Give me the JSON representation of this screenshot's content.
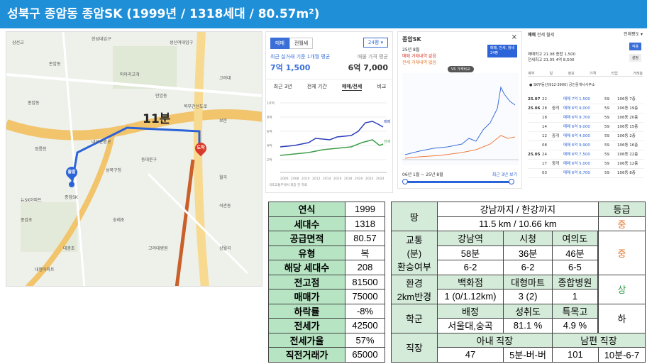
{
  "title": "성북구 종암동 종암SK (1999년 / 1318세대 / 80.57m²)",
  "map": {
    "travel_time": "11분",
    "labels": [
      "삼선교",
      "한성대입구",
      "성신여대입구",
      "돈암동",
      "미아리고개",
      "종암SK",
      "고려대",
      "종암동",
      "안암동",
      "보문",
      "동대문구",
      "성북구청",
      "정릉천",
      "내부순환로",
      "북부간선도로",
      "종암초",
      "숭례초",
      "월곡",
      "석관동",
      "대광초",
      "고려대병원",
      "상월곡",
      "뉴SK아파트",
      "대명아파트"
    ],
    "pin_start": "출발",
    "pin_end": "도착"
  },
  "price_panel": {
    "tabs": [
      "매매",
      "전월세"
    ],
    "area_select": "24평",
    "left_label": "최근 실거래 기준 1개월 평균",
    "left_value": "7억 1,500",
    "right_label": "매물 가격 평균",
    "right_value": "6억 7,000",
    "subtabs": [
      "최근 3년",
      "전체 기간",
      "매매/전세",
      "비교"
    ],
    "y_ticks": [
      "10억",
      "8억",
      "6억",
      "4억",
      "2억"
    ],
    "x_ticks": [
      "2006",
      "2008",
      "2010",
      "2012",
      "2014",
      "2016",
      "2018",
      "2020",
      "2022",
      "2024"
    ],
    "legend_sale": "매매",
    "legend_jeonse": "전세",
    "footnote": "국토교통부에서 최종 전 자료"
  },
  "trade_chart": {
    "title": "종암SK",
    "line1": "25년 8월",
    "line2": "매매 거래내역 없음",
    "line3": "전세 거래내역 없음",
    "badge": "VS 가격비교",
    "filter": "매매, 전세, 월세",
    "filter2": "24평",
    "range": "06년 1월 ~ 25년 8월",
    "range_btn": "최근 3년 보기"
  },
  "deals_panel": {
    "tabs": [
      "매매",
      "전세",
      "월세"
    ],
    "filter": "전체평도",
    "summary1": "매매최고 21.08 종합 1,500",
    "summary2": "전세최고 21.05 4억 8,500",
    "cols": [
      "계약",
      "일",
      "정보",
      "가격",
      "타입",
      "거래층"
    ],
    "agent": "SK부동산(912-3900) 공인중개사사무소",
    "rows": [
      {
        "ym": "25.07",
        "d": "22",
        "info": "",
        "price": "매매 7억 1,500",
        "type": "59",
        "floor": "106동 7층"
      },
      {
        "ym": "25.06",
        "d": "28",
        "info": "중개",
        "price": "매매 6억 9,000",
        "type": "59",
        "floor": "106동 19층"
      },
      {
        "ym": "",
        "d": "18",
        "info": "",
        "price": "매매 6억 9,700",
        "type": "59",
        "floor": "106동 20층"
      },
      {
        "ym": "",
        "d": "14",
        "info": "",
        "price": "매매 6억 9,000",
        "type": "59",
        "floor": "106동 15층"
      },
      {
        "ym": "",
        "d": "12",
        "info": "중개",
        "price": "매매 6억 4,000",
        "type": "59",
        "floor": "106동 2층"
      },
      {
        "ym": "",
        "d": "08",
        "info": "",
        "price": "매매 6억 9,900",
        "type": "59",
        "floor": "106동 16층"
      },
      {
        "ym": "25.05",
        "d": "24",
        "info": "",
        "price": "매매 6억 7,500",
        "type": "59",
        "floor": "106동 22층"
      },
      {
        "ym": "",
        "d": "17",
        "info": "중개",
        "price": "매매 6억 5,000",
        "type": "59",
        "floor": "106동 12층"
      },
      {
        "ym": "",
        "d": "03",
        "info": "",
        "price": "매매 6억 6,700",
        "type": "59",
        "floor": "106동 8층"
      }
    ]
  },
  "left_table": [
    {
      "k": "연식",
      "v": "1999"
    },
    {
      "k": "세대수",
      "v": "1318"
    },
    {
      "k": "공급면적",
      "v": "80.57"
    },
    {
      "k": "유형",
      "v": "복"
    },
    {
      "k": "해당 세대수",
      "v": "208"
    },
    {
      "k": "전고점",
      "v": "81500"
    },
    {
      "k": "매매가",
      "v": "75000"
    },
    {
      "k": "하락률",
      "v": "-8%"
    },
    {
      "k": "전세가",
      "v": "42500"
    },
    {
      "k": "전세가율",
      "v": "57%"
    },
    {
      "k": "직전거래가",
      "v": "65000"
    }
  ],
  "right_table": {
    "land": "땅",
    "land_head": "강남까지 / 한강까지",
    "grade_head": "등급",
    "land_val": "11.5 km / 10.66 km",
    "land_grade": "중",
    "traffic": "교통",
    "traffic_unit": "(분)",
    "transfer": "환승여부",
    "t_heads": [
      "강남역",
      "시청",
      "여의도"
    ],
    "t_mins": [
      "58분",
      "36분",
      "46분"
    ],
    "t_transfer": [
      "6-2",
      "6-2",
      "6-5"
    ],
    "traffic_grade": "중",
    "env": "환경",
    "env2": "2km반경",
    "e_heads": [
      "백화점",
      "대형마트",
      "종합병원"
    ],
    "e_vals": [
      "1 (0/1.12km)",
      "3 (2)",
      "1"
    ],
    "env_grade": "상",
    "school": "학군",
    "s_heads": [
      "배정",
      "성취도",
      "특목고"
    ],
    "s_vals": [
      "서울대,숭곡",
      "81.1 %",
      "4.9 %"
    ],
    "school_grade": "하",
    "work": "직장",
    "w_head1": "아내 직장",
    "w_head2": "남편 직장",
    "w_vals": [
      "47",
      "5분-버-버",
      "101",
      "10분-6-7"
    ]
  }
}
